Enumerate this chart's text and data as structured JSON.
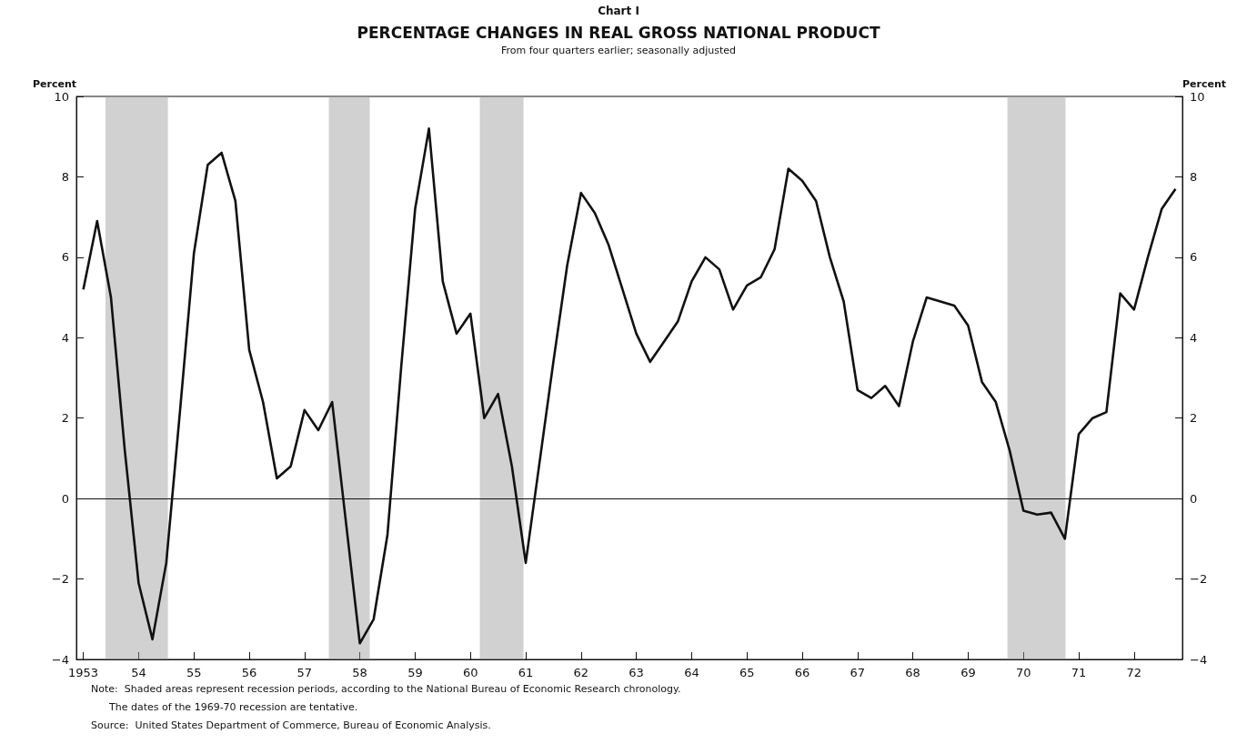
{
  "chart_data": {
    "type": "line",
    "title": "PERCENTAGE CHANGES IN REAL GROSS NATIONAL PRODUCT",
    "subtitle": "From four quarters earlier; seasonally adjusted",
    "ylabel": "Percent",
    "y2label": "Percent",
    "annotations": [
      "Chart I",
      "Note:  Shaded areas represent recession periods, according to the National Bureau of Economic Research chronology.",
      "The dates of the 1969-70 recession are tentative.",
      "Source:  United States Department of Commerce, Bureau of Economic Analysis."
    ],
    "x": [
      1953,
      1953.25,
      1953.5,
      1953.75,
      1954,
      1954.25,
      1954.5,
      1954.75,
      1955,
      1955.25,
      1955.5,
      1955.75,
      1956,
      1956.25,
      1956.5,
      1956.75,
      1957,
      1957.25,
      1957.5,
      1957.75,
      1958,
      1958.25,
      1958.5,
      1958.75,
      1959,
      1959.25,
      1959.5,
      1959.75,
      1960,
      1960.25,
      1960.5,
      1960.75,
      1961,
      1961.25,
      1961.5,
      1961.75,
      1962,
      1962.25,
      1962.5,
      1962.75,
      1963,
      1963.25,
      1963.5,
      1963.75,
      1964,
      1964.25,
      1964.5,
      1964.75,
      1965,
      1965.25,
      1965.5,
      1965.75,
      1966,
      1966.25,
      1966.5,
      1966.75,
      1967,
      1967.25,
      1967.5,
      1967.75,
      1968,
      1968.25,
      1968.5,
      1968.75,
      1969,
      1969.25,
      1969.5,
      1969.75,
      1970,
      1970.25,
      1970.5,
      1970.75,
      1971,
      1971.25,
      1971.5,
      1971.75,
      1972,
      1972.25,
      1972.5,
      1972.75
    ],
    "series": [
      {
        "color": "#111111",
        "values": [
          5.2,
          6.9,
          5.0,
          1.2,
          -2.1,
          -3.5,
          -1.6,
          2.2,
          6.1,
          8.3,
          8.6,
          7.4,
          3.7,
          2.4,
          0.5,
          0.8,
          2.2,
          1.7,
          2.4,
          -0.6,
          -3.6,
          -3.0,
          -0.9,
          3.3,
          7.2,
          9.2,
          5.4,
          4.1,
          4.6,
          2.0,
          2.6,
          0.8,
          -1.6,
          0.9,
          3.4,
          5.8,
          7.6,
          7.1,
          6.3,
          5.2,
          4.1,
          3.4,
          3.9,
          4.4,
          5.4,
          6.0,
          5.7,
          4.7,
          5.3,
          5.5,
          6.2,
          8.2,
          7.9,
          7.4,
          6.0,
          4.9,
          2.7,
          2.5,
          2.8,
          2.3,
          3.9,
          5.0,
          4.9,
          4.8,
          4.3,
          2.9,
          2.4,
          1.2,
          -0.3,
          -0.4,
          -0.35,
          -1.0,
          1.6,
          2.0,
          2.15,
          5.1,
          4.7,
          6.0,
          7.2,
          7.7
        ]
      }
    ],
    "xlim": [
      1952.875,
      1972.875
    ],
    "xticks": [
      {
        "value": 1953,
        "label": "1953"
      },
      {
        "value": 1954,
        "label": "54"
      },
      {
        "value": 1955,
        "label": "55"
      },
      {
        "value": 1956,
        "label": "56"
      },
      {
        "value": 1957,
        "label": "57"
      },
      {
        "value": 1958,
        "label": "58"
      },
      {
        "value": 1959,
        "label": "59"
      },
      {
        "value": 1960,
        "label": "60"
      },
      {
        "value": 1961,
        "label": "61"
      },
      {
        "value": 1962,
        "label": "62"
      },
      {
        "value": 1963,
        "label": "63"
      },
      {
        "value": 1964,
        "label": "64"
      },
      {
        "value": 1965,
        "label": "65"
      },
      {
        "value": 1966,
        "label": "66"
      },
      {
        "value": 1967,
        "label": "67"
      },
      {
        "value": 1968,
        "label": "68"
      },
      {
        "value": 1969,
        "label": "69"
      },
      {
        "value": 1970,
        "label": "70"
      },
      {
        "value": 1971,
        "label": "71"
      },
      {
        "value": 1972,
        "label": "72"
      }
    ],
    "ylim": [
      -4,
      10
    ],
    "yticks": [
      -4,
      -2,
      0,
      2,
      4,
      6,
      8,
      10
    ],
    "y2lim": [
      -4,
      10
    ],
    "y2ticks": [
      -4,
      -2,
      0,
      2,
      4,
      6,
      8,
      10
    ],
    "ref_lines": [
      {
        "axis": "y",
        "value": 0,
        "color": "#111111"
      }
    ],
    "bands": [
      {
        "axis": "x",
        "from": 1953.4,
        "to": 1954.53,
        "color": "#999999"
      },
      {
        "axis": "x",
        "from": 1957.44,
        "to": 1958.18,
        "color": "#999999"
      },
      {
        "axis": "x",
        "from": 1960.17,
        "to": 1960.96,
        "color": "#999999"
      },
      {
        "axis": "x",
        "from": 1969.71,
        "to": 1970.76,
        "color": "#999999"
      }
    ],
    "grid": false
  }
}
